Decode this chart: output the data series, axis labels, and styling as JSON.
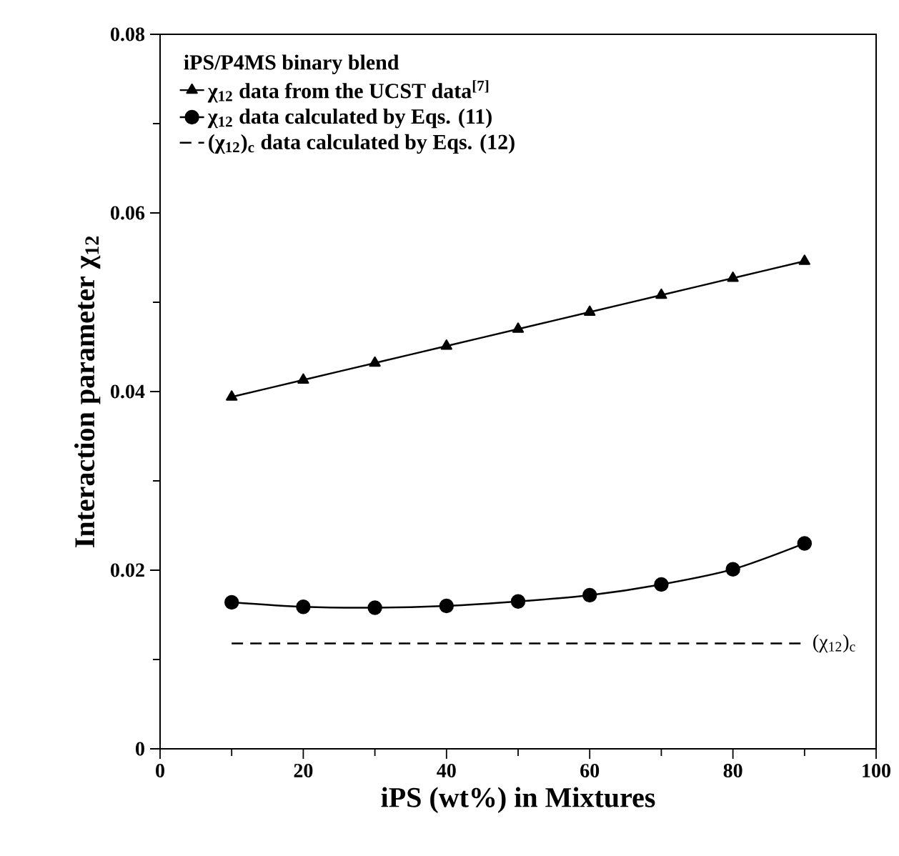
{
  "chart_data": {
    "type": "line",
    "legend_title": "iPS/P4MS binary blend",
    "xlabel": "iPS (wt%) in Mixtures",
    "ylabel": "Interaction parameter χ$_{12}$",
    "x": [
      10,
      20,
      30,
      40,
      50,
      60,
      70,
      80,
      90
    ],
    "series": [
      {
        "name": "χ$_{12}$ data from the UCST data$^{[7]}$",
        "color": "#000000",
        "marker": "triangle",
        "line_style": "solid",
        "values": [
          0.0394,
          0.0413,
          0.0432,
          0.0451,
          0.047,
          0.0489,
          0.0508,
          0.0527,
          0.0546
        ]
      },
      {
        "name": "χ$_{12}$ data calculated by Eqs. (11)",
        "color": "#000000",
        "marker": "circle",
        "line_style": "solid",
        "values": [
          0.0164,
          0.0159,
          0.0158,
          0.016,
          0.0165,
          0.0172,
          0.0184,
          0.0201,
          0.023
        ]
      },
      {
        "name": "(χ$_{12}$)$_{c}$ data calculated by Eqs. (12)",
        "color": "#000000",
        "marker": "none",
        "line_style": "dashed",
        "x": [
          10,
          90
        ],
        "values": [
          0.0118,
          0.0118
        ]
      }
    ],
    "annotations": [
      {
        "text": "(χ$_{12}$)$_{c}$",
        "x": 90,
        "y": 0.0118
      }
    ],
    "xlim": [
      0,
      100
    ],
    "ylim": [
      0,
      0.08
    ],
    "xticks": [
      0,
      20,
      40,
      60,
      80,
      100
    ],
    "yticks": [
      0,
      0.02,
      0.04,
      0.06,
      0.08
    ],
    "grid": false,
    "legend": "top left"
  }
}
